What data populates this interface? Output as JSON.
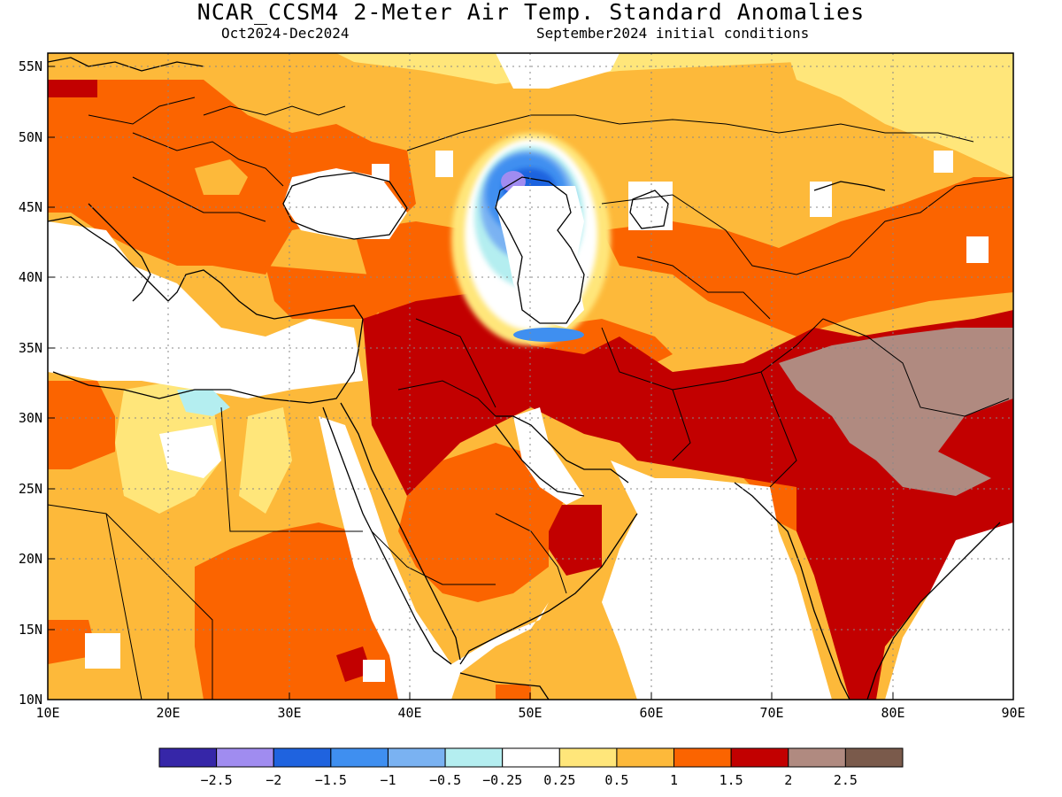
{
  "title": "NCAR_CCSM4 2-Meter Air Temp. Standard Anomalies",
  "subtitle_left": "Oct2024-Dec2024",
  "subtitle_right": "September2024 initial conditions",
  "map": {
    "lon_range": [
      10,
      90
    ],
    "lat_range": [
      10,
      56
    ],
    "lat_ticks": [
      "55N",
      "50N",
      "45N",
      "40N",
      "35N",
      "30N",
      "25N",
      "20N",
      "15N",
      "10N"
    ],
    "lat_values": [
      55,
      50,
      45,
      40,
      35,
      30,
      25,
      20,
      15,
      10
    ],
    "lon_ticks": [
      "10E",
      "20E",
      "30E",
      "40E",
      "50E",
      "60E",
      "70E",
      "80E",
      "90E"
    ],
    "lon_values": [
      10,
      20,
      30,
      40,
      50,
      60,
      70,
      80,
      90
    ],
    "grid": "dotted"
  },
  "colorbar": {
    "colors": [
      "#3626a8",
      "#a08cf0",
      "#1f63df",
      "#3f8ff0",
      "#7ab2f2",
      "#b4eef0",
      "#ffffff",
      "#ffe67a",
      "#fdb93a",
      "#fb6400",
      "#c20000",
      "#b08a80",
      "#7a5a4b"
    ],
    "labels": [
      "-2.5",
      "-2",
      "-1.5",
      "-1",
      "-0.5",
      "-0.25",
      "0.25",
      "0.5",
      "1",
      "1.5",
      "2",
      "2.5"
    ]
  }
}
